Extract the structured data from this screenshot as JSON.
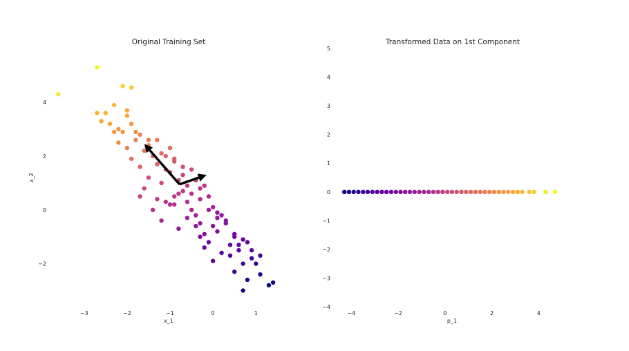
{
  "chart_data": [
    {
      "type": "scatter",
      "title": "Original Training Set",
      "xlabel": "x_1",
      "ylabel": "x_2",
      "xticks": [
        "−3",
        "−2",
        "−1",
        "0",
        "1"
      ],
      "xtick_values": [
        -3,
        -2,
        -1,
        0,
        1
      ],
      "yticks": [
        "4",
        "2",
        "0",
        "−2"
      ],
      "ytick_values": [
        4,
        2,
        0,
        -2
      ],
      "xlim": [
        -3.8,
        1.8
      ],
      "ylim": [
        -3.5,
        5.8
      ],
      "grid": false,
      "colormap": [
        "#0d0887",
        "#6a00a8",
        "#b12a90",
        "#e16462",
        "#fca636",
        "#f0f921"
      ],
      "arrows": [
        {
          "from": [
            -0.78,
            0.95
          ],
          "to": [
            -1.6,
            2.45
          ]
        },
        {
          "from": [
            -0.78,
            0.95
          ],
          "to": [
            -0.15,
            1.3
          ]
        }
      ],
      "points": {
        "x": [
          -3.6,
          -2.7,
          -2.1,
          -1.9,
          -2.3,
          -2.5,
          -2.6,
          -2.7,
          -2.0,
          -1.9,
          -2.1,
          -2.3,
          -1.8,
          -1.7,
          -2.2,
          -2.0,
          -1.6,
          -1.5,
          -1.9,
          -1.4,
          -1.7,
          -1.2,
          -1.3,
          -1.0,
          -1.1,
          -0.9,
          -0.7,
          -1.5,
          -1.6,
          -1.2,
          -1.0,
          -0.8,
          -0.6,
          -0.5,
          -0.9,
          -0.7,
          -0.4,
          -0.3,
          -1.3,
          -1.1,
          -0.9,
          -0.8,
          -0.6,
          -0.5,
          -0.2,
          -0.1,
          -0.4,
          -0.3,
          0.0,
          0.1,
          -1.7,
          -1.4,
          -1.2,
          -1.0,
          -0.8,
          -0.6,
          -0.4,
          -0.2,
          0.0,
          0.2,
          -0.3,
          -0.1,
          0.1,
          0.3,
          0.4,
          0.5,
          0.2,
          0.0,
          -0.2,
          0.6,
          0.7,
          0.8,
          0.9,
          0.5,
          0.4,
          1.0,
          1.1,
          0.8,
          0.7,
          1.3,
          1.4,
          0.6,
          -2.4,
          -2.2,
          -2.0,
          -1.8,
          -1.5,
          -1.3,
          -1.1,
          -0.9,
          -0.7,
          -0.5,
          -0.3,
          -0.1,
          0.1,
          0.3,
          0.5,
          0.7,
          0.9,
          1.1
        ],
        "y": [
          4.3,
          5.3,
          4.6,
          4.55,
          3.9,
          3.6,
          3.3,
          3.6,
          3.7,
          3.2,
          2.9,
          2.9,
          2.6,
          2.8,
          2.5,
          2.3,
          2.2,
          2.6,
          1.9,
          2.0,
          1.6,
          2.1,
          1.7,
          2.3,
          1.5,
          1.9,
          1.6,
          1.2,
          0.8,
          1.0,
          1.4,
          1.1,
          0.9,
          1.5,
          0.5,
          0.7,
          1.1,
          0.8,
          0.4,
          0.3,
          0.2,
          0.6,
          0.3,
          0.0,
          0.9,
          0.5,
          -0.2,
          -0.5,
          0.1,
          -0.3,
          0.5,
          0.0,
          -0.4,
          0.2,
          -0.7,
          -0.3,
          -0.6,
          -0.9,
          -0.6,
          -0.2,
          -1.0,
          -1.2,
          -0.8,
          -0.5,
          -1.3,
          -1.0,
          -1.6,
          -1.9,
          -1.4,
          -1.5,
          -2.0,
          -1.2,
          -1.8,
          -2.3,
          -1.7,
          -2.0,
          -2.4,
          -2.6,
          -3.0,
          -2.8,
          -2.7,
          -1.3,
          3.2,
          3.0,
          3.5,
          2.9,
          2.4,
          2.6,
          2.0,
          1.8,
          1.3,
          0.6,
          0.4,
          0.0,
          -0.1,
          -0.4,
          -0.9,
          -1.1,
          -1.5,
          -1.7
        ]
      }
    },
    {
      "type": "scatter",
      "title": "Transformed Data on 1st Component",
      "xlabel": "p_1",
      "ylabel": "",
      "xticks": [
        "−4",
        "−2",
        "0",
        "2",
        "4"
      ],
      "xtick_values": [
        -4,
        -2,
        0,
        2,
        4
      ],
      "yticks": [
        "5",
        "4",
        "3",
        "2",
        "1",
        "0",
        "−1",
        "−2",
        "−3",
        "−4"
      ],
      "ytick_values": [
        5,
        4,
        3,
        2,
        1,
        0,
        -1,
        -2,
        -3,
        -4
      ],
      "xlim": [
        -4.6,
        5.2
      ],
      "ylim": [
        -4,
        5
      ],
      "grid": false,
      "colormap": [
        "#0d0887",
        "#6a00a8",
        "#b12a90",
        "#e16462",
        "#fca636",
        "#f0f921"
      ],
      "points": {
        "x": [
          -4.3,
          -4.1,
          -3.9,
          -3.7,
          -3.5,
          -3.3,
          -3.1,
          -2.9,
          -2.7,
          -2.5,
          -2.3,
          -2.1,
          -1.9,
          -1.7,
          -1.5,
          -1.3,
          -1.1,
          -0.9,
          -0.7,
          -0.5,
          -0.3,
          -0.1,
          0.1,
          0.3,
          0.5,
          0.7,
          0.9,
          1.1,
          1.3,
          1.5,
          1.7,
          1.9,
          2.1,
          2.3,
          2.5,
          2.7,
          2.9,
          3.1,
          3.3,
          3.6,
          3.8,
          4.3,
          4.7
        ],
        "y": [
          0,
          0,
          0,
          0,
          0,
          0,
          0,
          0,
          0,
          0,
          0,
          0,
          0,
          0,
          0,
          0,
          0,
          0,
          0,
          0,
          0,
          0,
          0,
          0,
          0,
          0,
          0,
          0,
          0,
          0,
          0,
          0,
          0,
          0,
          0,
          0,
          0,
          0,
          0,
          0,
          0,
          0,
          0
        ]
      }
    }
  ]
}
